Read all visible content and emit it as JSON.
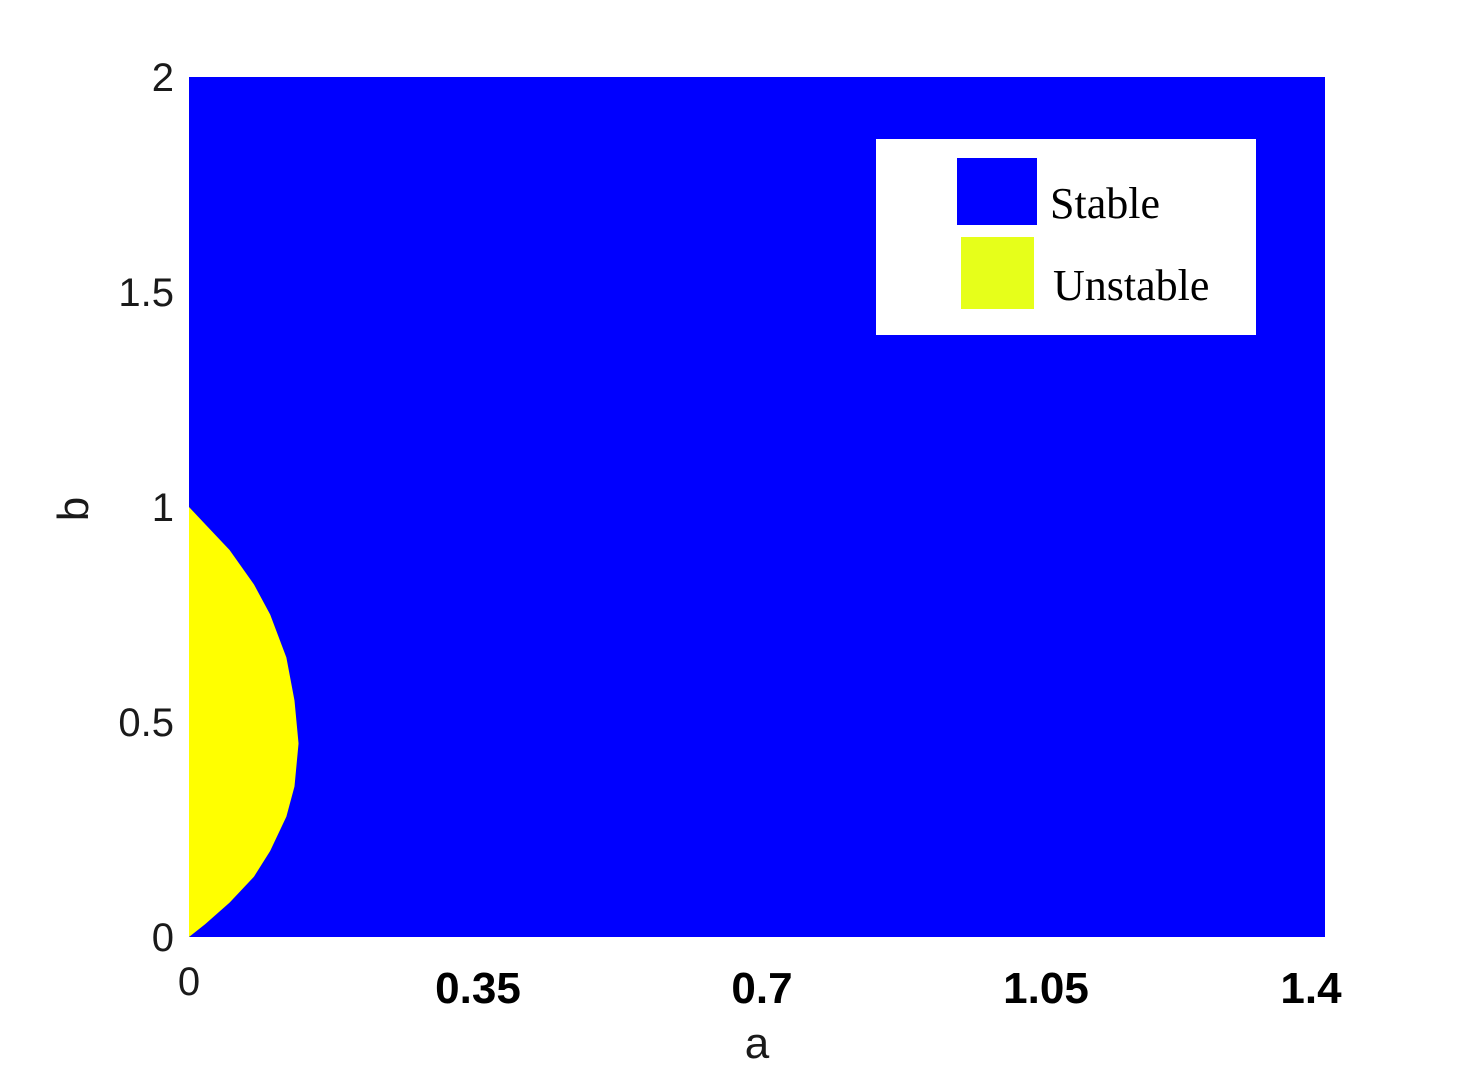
{
  "chart_data": {
    "type": "area",
    "xlabel": "a",
    "ylabel": "b",
    "xlim": [
      0,
      1.4
    ],
    "ylim": [
      0,
      2
    ],
    "xticks": [
      "0",
      "0.35",
      "0.7",
      "1.05",
      "1.4"
    ],
    "xtick_values": [
      0,
      0.35,
      0.7,
      1.05,
      1.4
    ],
    "yticks": [
      "0",
      "0.5",
      "1",
      "1.5",
      "2"
    ],
    "ytick_values": [
      0,
      0.5,
      1,
      1.5,
      2
    ],
    "grid": false,
    "legend_position": "top-right",
    "series": [
      {
        "name": "Stable",
        "color": "#0000ff",
        "region": "entire plot area outside the unstable region"
      },
      {
        "name": "Unstable",
        "color": "#ffff00",
        "legend_color": "#e6ff1a",
        "boundary": {
          "a": [
            0,
            0.02,
            0.05,
            0.08,
            0.1,
            0.12,
            0.13,
            0.135,
            0.13,
            0.12,
            0.1,
            0.08,
            0.05,
            0.02,
            0
          ],
          "b": [
            0,
            0.03,
            0.08,
            0.14,
            0.2,
            0.28,
            0.35,
            0.45,
            0.55,
            0.65,
            0.75,
            0.82,
            0.9,
            0.96,
            1.0
          ]
        }
      }
    ]
  }
}
